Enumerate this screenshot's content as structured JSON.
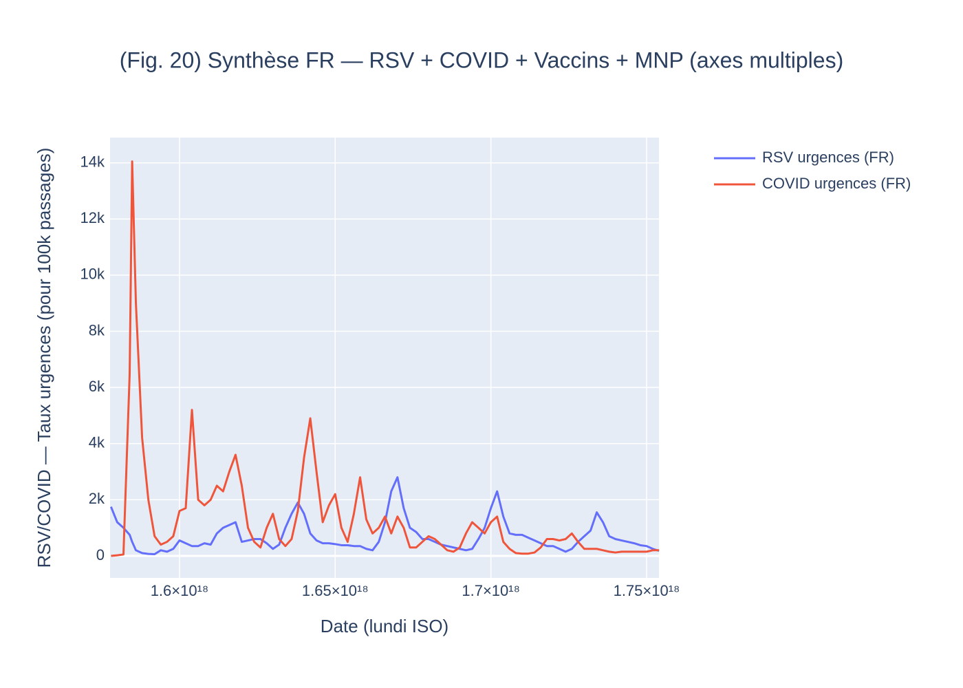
{
  "chart_data": {
    "type": "line",
    "title": "(Fig. 20) Synthèse FR — RSV + COVID + Vaccins + MNP (axes multiples)",
    "xlabel": "Date (lundi ISO)",
    "ylabel": "RSV/COVID — Taux urgences (pour 100k passages)",
    "x": [
      1.578e+18,
      1.58e+18,
      1.582e+18,
      1.584e+18,
      1.5848e+18,
      1.586e+18,
      1.588e+18,
      1.59e+18,
      1.592e+18,
      1.594e+18,
      1.596e+18,
      1.598e+18,
      1.6e+18,
      1.602e+18,
      1.604e+18,
      1.606e+18,
      1.608e+18,
      1.61e+18,
      1.612e+18,
      1.614e+18,
      1.616e+18,
      1.618e+18,
      1.62e+18,
      1.622e+18,
      1.624e+18,
      1.626e+18,
      1.628e+18,
      1.63e+18,
      1.632e+18,
      1.634e+18,
      1.636e+18,
      1.638e+18,
      1.64e+18,
      1.642e+18,
      1.644e+18,
      1.646e+18,
      1.648e+18,
      1.65e+18,
      1.652e+18,
      1.654e+18,
      1.656e+18,
      1.658e+18,
      1.66e+18,
      1.662e+18,
      1.664e+18,
      1.666e+18,
      1.668e+18,
      1.67e+18,
      1.672e+18,
      1.674e+18,
      1.676e+18,
      1.678e+18,
      1.68e+18,
      1.682e+18,
      1.684e+18,
      1.686e+18,
      1.688e+18,
      1.69e+18,
      1.692e+18,
      1.694e+18,
      1.696e+18,
      1.698e+18,
      1.7e+18,
      1.702e+18,
      1.704e+18,
      1.706e+18,
      1.708e+18,
      1.71e+18,
      1.712e+18,
      1.714e+18,
      1.716e+18,
      1.718e+18,
      1.72e+18,
      1.722e+18,
      1.724e+18,
      1.726e+18,
      1.728e+18,
      1.73e+18,
      1.732e+18,
      1.734e+18,
      1.736e+18,
      1.738e+18,
      1.74e+18,
      1.742e+18,
      1.744e+18,
      1.746e+18,
      1.748e+18,
      1.75e+18,
      1.752e+18,
      1.754e+18
    ],
    "series": [
      {
        "name": "RSV urgences (FR)",
        "color": "#636efa",
        "values": [
          1750,
          1200,
          1000,
          750,
          500,
          200,
          100,
          70,
          60,
          200,
          150,
          250,
          550,
          450,
          350,
          350,
          450,
          400,
          800,
          1000,
          1100,
          1200,
          500,
          550,
          600,
          600,
          450,
          250,
          400,
          1000,
          1500,
          1900,
          1500,
          800,
          550,
          450,
          450,
          420,
          380,
          380,
          350,
          350,
          250,
          200,
          500,
          1200,
          2300,
          2800,
          1700,
          1000,
          850,
          600,
          600,
          500,
          400,
          350,
          300,
          250,
          200,
          250,
          600,
          1000,
          1700,
          2300,
          1400,
          800,
          750,
          750,
          650,
          550,
          450,
          350,
          350,
          250,
          150,
          250,
          500,
          700,
          900,
          1550,
          1200,
          700,
          600,
          550,
          500,
          450,
          380,
          350,
          250,
          180
        ]
      },
      {
        "name": "COVID urgences (FR)",
        "color": "#ef553b",
        "values": [
          0,
          20,
          50,
          6500,
          14050,
          9000,
          4200,
          2000,
          700,
          400,
          500,
          700,
          1600,
          1700,
          5200,
          2000,
          1800,
          2000,
          2500,
          2300,
          3000,
          3600,
          2500,
          1000,
          500,
          300,
          1000,
          1500,
          600,
          350,
          600,
          1600,
          3500,
          4900,
          3000,
          1200,
          1800,
          2200,
          1000,
          500,
          1500,
          2800,
          1300,
          800,
          1000,
          1400,
          800,
          1400,
          1000,
          300,
          300,
          500,
          700,
          600,
          400,
          200,
          150,
          300,
          800,
          1200,
          1000,
          800,
          1200,
          1400,
          500,
          250,
          100,
          80,
          80,
          120,
          300,
          600,
          600,
          550,
          600,
          800,
          500,
          250,
          250,
          250,
          200,
          150,
          120,
          150,
          150,
          150,
          150,
          150,
          200,
          200
        ]
      }
    ],
    "xlim": [
      1.5777e+18,
      1.75398e+18
    ],
    "xticks": [
      {
        "value": 1.6e+18,
        "label": "1.6×10¹⁸"
      },
      {
        "value": 1.65e+18,
        "label": "1.65×10¹⁸"
      },
      {
        "value": 1.7e+18,
        "label": "1.7×10¹⁸"
      },
      {
        "value": 1.75e+18,
        "label": "1.75×10¹⁸"
      }
    ],
    "ylim": [
      -785,
      14900
    ],
    "yticks": [
      0,
      {
        "value": 2000,
        "label": "2k"
      },
      {
        "value": 4000,
        "label": "4k"
      },
      {
        "value": 6000,
        "label": "6k"
      },
      {
        "value": 8000,
        "label": "8k"
      },
      {
        "value": 10000,
        "label": "10k"
      },
      {
        "value": 12000,
        "label": "12k"
      },
      {
        "value": 14000,
        "label": "14k"
      }
    ],
    "grid": true,
    "legend": "right"
  }
}
